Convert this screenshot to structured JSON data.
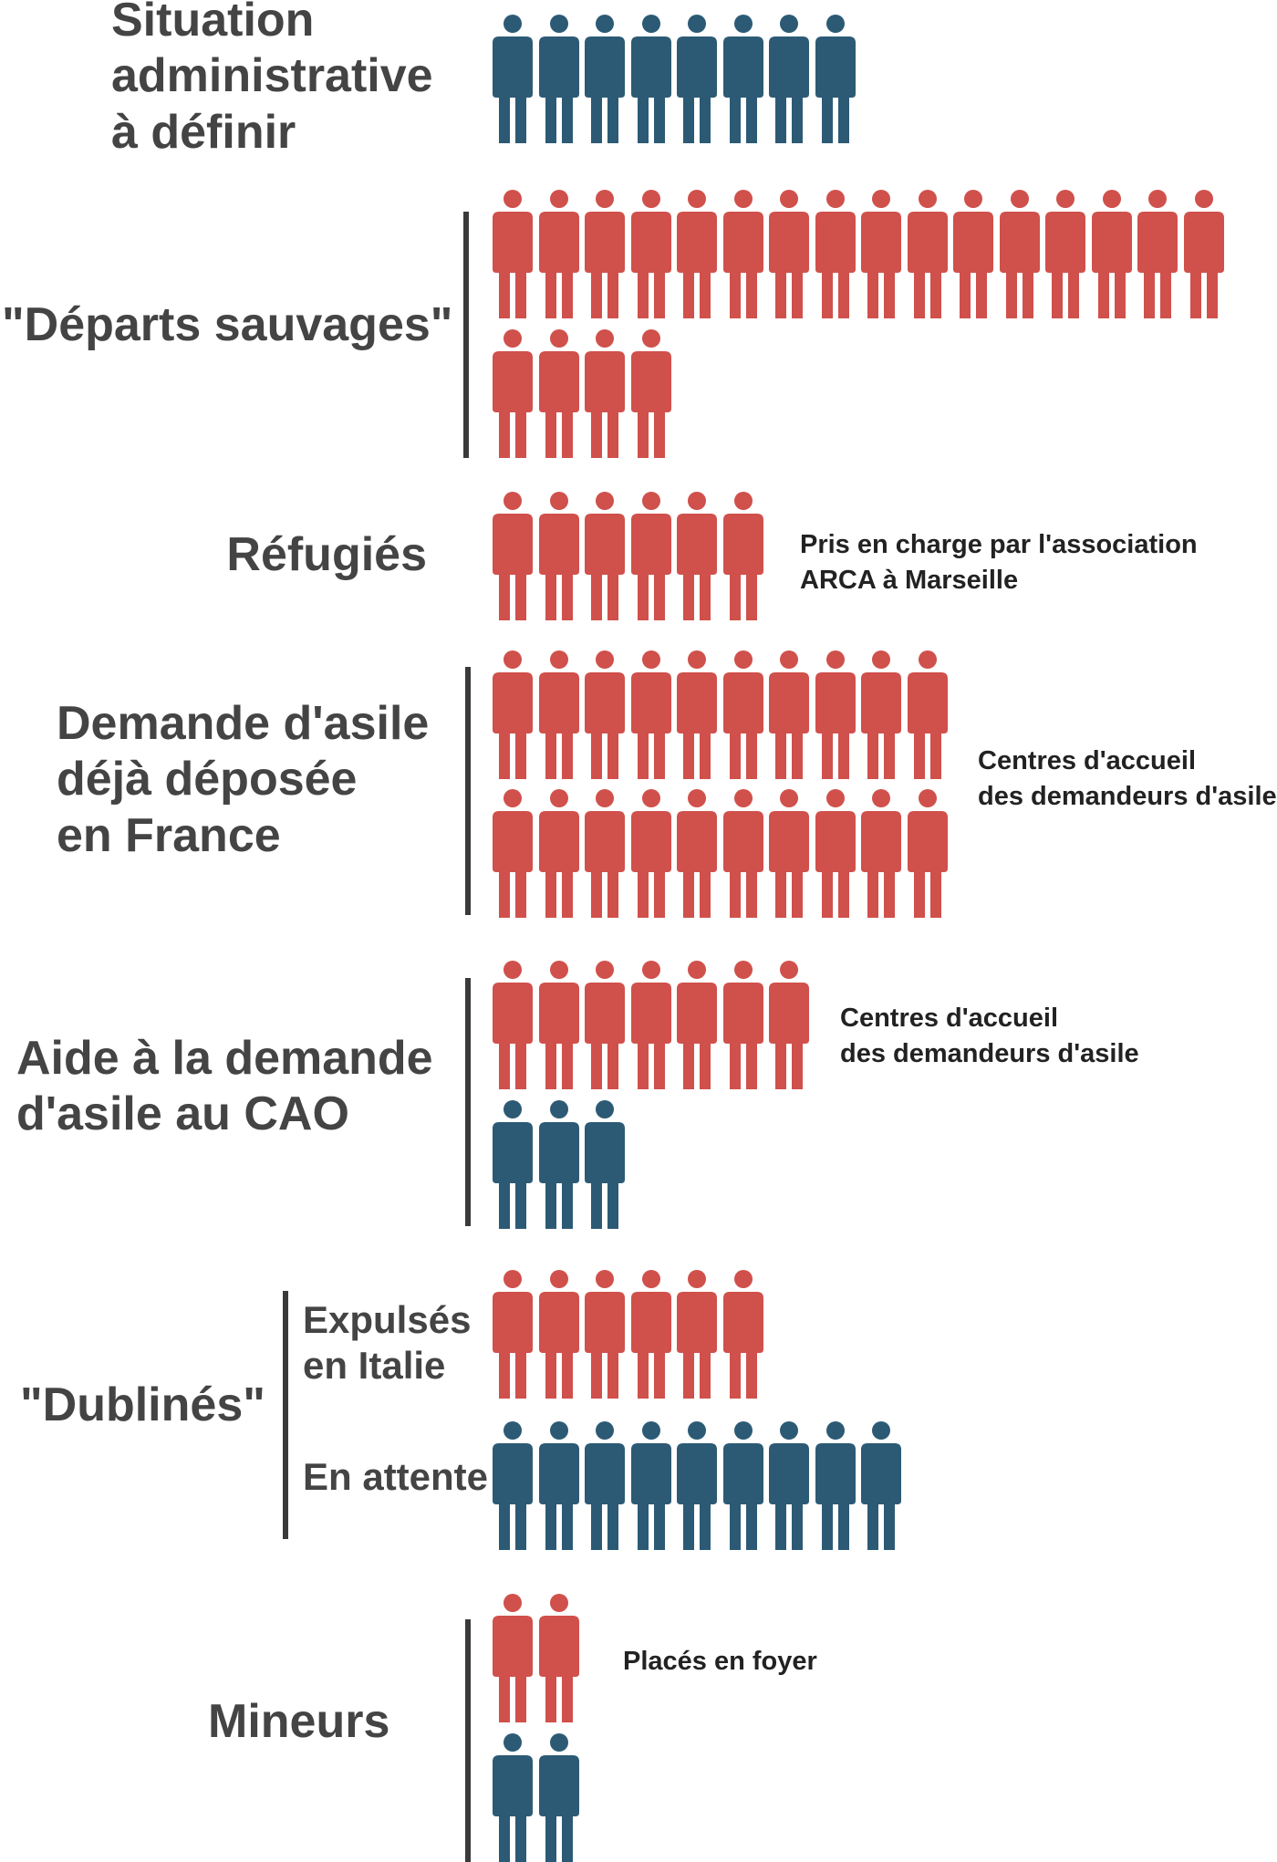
{
  "colors": {
    "red": "#d0504b",
    "blue": "#2c5a75",
    "text": "#444444"
  },
  "chart_data": {
    "type": "pictogram",
    "groups": [
      {
        "label": "Situation administrative à définir",
        "red": 0,
        "blue": 8
      },
      {
        "label": "\"Départs sauvages\"",
        "red": 20,
        "blue": 0
      },
      {
        "label": "Réfugiés",
        "red": 6,
        "blue": 0,
        "note": "Pris en charge par l'association ARCA à Marseille"
      },
      {
        "label": "Demande d'asile déjà déposée en France",
        "red": 20,
        "blue": 0,
        "note": "Centres d'accueil des demandeurs d'asile"
      },
      {
        "label": "Aide à la demande d'asile au CAO",
        "red": 7,
        "blue": 3,
        "note": "Centres d'accueil des demandeurs d'asile"
      },
      {
        "label": "\"Dublinés\" – Expulsés en Italie",
        "red": 6,
        "blue": 0
      },
      {
        "label": "\"Dublinés\" – En attente",
        "red": 0,
        "blue": 9
      },
      {
        "label": "Mineurs",
        "red": 2,
        "blue": 2,
        "note": "Placés en foyer"
      }
    ]
  },
  "labels": {
    "situation": [
      "Situation",
      "administrative",
      "à définir"
    ],
    "departs": "\"Départs sauvages\"",
    "refugies": "Réfugiés",
    "demande": [
      "Demande d'asile",
      "déjà déposée",
      "en France"
    ],
    "aide": [
      "Aide à la demande",
      "d'asile au CAO"
    ],
    "dublines": "\"Dublinés\"",
    "expulses": [
      "Expulsés",
      "en Italie"
    ],
    "attente": "En attente",
    "mineurs": "Mineurs"
  },
  "notes": {
    "refugies": [
      "Pris en charge par l'association",
      "ARCA à Marseille"
    ],
    "demande": [
      "Centres d'accueil",
      "des demandeurs d'asile"
    ],
    "aide": [
      "Centres d'accueil",
      "des demandeurs d'asile"
    ],
    "mineurs": "Placés en foyer"
  }
}
